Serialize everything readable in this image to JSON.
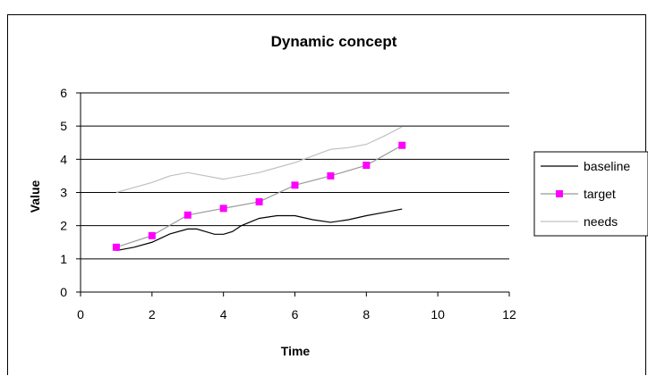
{
  "chart_data": {
    "type": "line",
    "title": "Dynamic concept",
    "xlabel": "Time",
    "ylabel": "Value",
    "xlim": [
      0,
      12
    ],
    "ylim": [
      0,
      6
    ],
    "x_ticks": [
      "0",
      "2",
      "4",
      "6",
      "8",
      "10",
      "12"
    ],
    "y_ticks": [
      "0",
      "1",
      "2",
      "3",
      "4",
      "5",
      "6"
    ],
    "grid": "horizontal major gridlines",
    "legend_position": "right",
    "series": [
      {
        "name": "baseline",
        "color": "#000000",
        "marker": "none",
        "x": [
          1,
          1.5,
          2,
          2.5,
          3,
          3.25,
          3.5,
          3.75,
          4,
          4.25,
          4.5,
          5,
          5.5,
          6,
          6.5,
          7,
          7.5,
          8,
          8.5,
          9
        ],
        "y": [
          1.25,
          1.35,
          1.5,
          1.75,
          1.9,
          1.9,
          1.82,
          1.74,
          1.74,
          1.82,
          2.0,
          2.22,
          2.3,
          2.3,
          2.18,
          2.1,
          2.18,
          2.3,
          2.4,
          2.5
        ]
      },
      {
        "name": "target",
        "color": "#ff00ff",
        "line_color": "#999999",
        "marker": "square",
        "x": [
          1,
          2,
          3,
          4,
          5,
          6,
          7,
          8,
          9
        ],
        "y": [
          1.35,
          1.7,
          2.32,
          2.52,
          2.72,
          3.22,
          3.5,
          3.82,
          4.42
        ]
      },
      {
        "name": "needs",
        "color": "#c0c0c0",
        "marker": "none",
        "x": [
          1,
          1.5,
          2,
          2.5,
          3,
          3.5,
          4,
          4.5,
          5,
          5.5,
          6,
          6.5,
          7,
          7.5,
          8,
          8.5,
          9
        ],
        "y": [
          3.0,
          3.15,
          3.3,
          3.5,
          3.6,
          3.5,
          3.4,
          3.5,
          3.6,
          3.75,
          3.9,
          4.1,
          4.3,
          4.35,
          4.45,
          4.7,
          4.98
        ]
      }
    ]
  }
}
